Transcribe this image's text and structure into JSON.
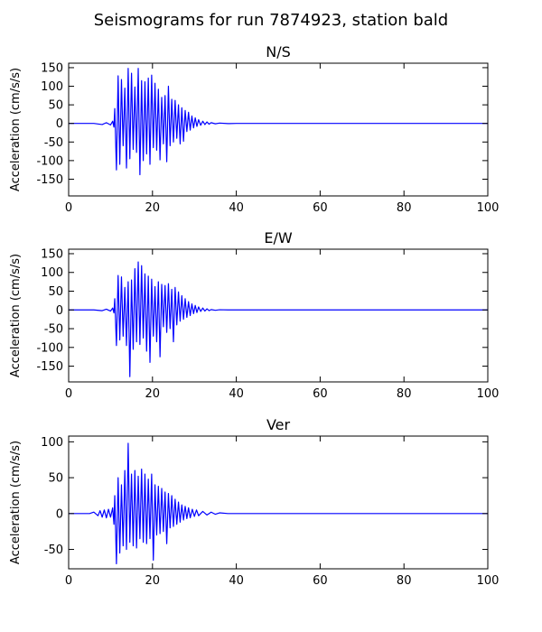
{
  "figure": {
    "title": "Seismograms for run 7874923, station bald",
    "background": "#ffffff",
    "line_color": "#0000ff"
  },
  "chart_data": [
    {
      "type": "line",
      "title": "N/S",
      "xlabel": "",
      "ylabel": "Acceleration (cm/s/s)",
      "xlim": [
        0,
        100
      ],
      "ylim": [
        -195,
        162
      ],
      "xticks": [
        0,
        20,
        40,
        60,
        80,
        100
      ],
      "yticks": [
        -150,
        -100,
        -50,
        0,
        50,
        100,
        150
      ],
      "grid": false,
      "series": [
        {
          "x": [
            0,
            6,
            8,
            9,
            10,
            10.5,
            10.8,
            11,
            11.4,
            11.8,
            12.2,
            12.6,
            13,
            13.4,
            13.8,
            14.2,
            14.6,
            15,
            15.4,
            15.8,
            16.2,
            16.6,
            17,
            17.4,
            17.8,
            18.2,
            18.6,
            19,
            19.4,
            19.8,
            20.2,
            20.6,
            21,
            21.4,
            21.8,
            22.2,
            22.6,
            23,
            23.4,
            23.8,
            24.2,
            24.6,
            25,
            25.4,
            25.8,
            26.2,
            26.6,
            27,
            27.4,
            27.8,
            28.2,
            28.6,
            29,
            29.4,
            29.8,
            30.2,
            30.6,
            31,
            31.5,
            32,
            32.5,
            33,
            33.5,
            34,
            35,
            36,
            38,
            40,
            100
          ],
          "y": [
            0,
            0,
            -3,
            2,
            -4,
            6,
            -10,
            40,
            -125,
            128,
            -110,
            118,
            -60,
            95,
            -120,
            148,
            -95,
            135,
            -70,
            98,
            -78,
            148,
            -138,
            115,
            -100,
            112,
            -82,
            122,
            -110,
            130,
            -65,
            108,
            -72,
            92,
            -98,
            70,
            -55,
            75,
            -103,
            100,
            -60,
            65,
            -50,
            62,
            -40,
            50,
            -55,
            42,
            -48,
            35,
            -22,
            30,
            -18,
            20,
            -12,
            15,
            -8,
            10,
            -5,
            6,
            -3,
            4,
            -2,
            2,
            -1,
            1,
            -0.5,
            0,
            0
          ]
        }
      ]
    },
    {
      "type": "line",
      "title": "E/W",
      "xlabel": "",
      "ylabel": "Acceleration (cm/s/s)",
      "xlim": [
        0,
        100
      ],
      "ylim": [
        -192,
        162
      ],
      "xticks": [
        0,
        20,
        40,
        60,
        80,
        100
      ],
      "yticks": [
        -150,
        -100,
        -50,
        0,
        50,
        100,
        150
      ],
      "grid": false,
      "series": [
        {
          "x": [
            0,
            6,
            8,
            9,
            10,
            10.5,
            10.8,
            11,
            11.4,
            11.8,
            12.2,
            12.6,
            13,
            13.4,
            13.8,
            14.2,
            14.6,
            15,
            15.4,
            15.8,
            16.2,
            16.6,
            17,
            17.4,
            17.8,
            18.2,
            18.6,
            19,
            19.4,
            19.8,
            20.2,
            20.6,
            21,
            21.4,
            21.8,
            22.2,
            22.6,
            23,
            23.4,
            23.8,
            24.2,
            24.6,
            25,
            25.4,
            25.8,
            26.2,
            26.6,
            27,
            27.4,
            27.8,
            28.2,
            28.6,
            29,
            29.4,
            29.8,
            30.2,
            30.6,
            31,
            31.5,
            32,
            32.5,
            33,
            33.5,
            34,
            35,
            36,
            38,
            40,
            100
          ],
          "y": [
            0,
            0,
            -2,
            2,
            -3,
            5,
            -8,
            30,
            -95,
            92,
            -80,
            88,
            -70,
            60,
            -95,
            75,
            -178,
            80,
            -105,
            110,
            -85,
            128,
            -92,
            118,
            -75,
            96,
            -110,
            90,
            -140,
            82,
            -70,
            62,
            -85,
            75,
            -125,
            68,
            -45,
            65,
            -60,
            70,
            -50,
            55,
            -85,
            60,
            -40,
            48,
            -30,
            38,
            -25,
            30,
            -20,
            22,
            -15,
            16,
            -10,
            12,
            -7,
            8,
            -4,
            5,
            -3,
            3,
            -2,
            1,
            -1,
            0.5,
            0,
            0,
            0
          ]
        }
      ]
    },
    {
      "type": "line",
      "title": "Ver",
      "xlabel": "",
      "ylabel": "Acceleration (cm/s/s)",
      "xlim": [
        0,
        100
      ],
      "ylim": [
        -77,
        108
      ],
      "xticks": [
        0,
        20,
        40,
        60,
        80,
        100
      ],
      "yticks": [
        -50,
        0,
        50,
        100
      ],
      "grid": false,
      "series": [
        {
          "x": [
            0,
            5,
            6,
            7,
            7.5,
            8,
            8.5,
            9,
            9.5,
            10,
            10.5,
            10.8,
            11,
            11.4,
            11.8,
            12.2,
            12.6,
            13,
            13.4,
            13.8,
            14.2,
            14.6,
            15,
            15.4,
            15.8,
            16.2,
            16.6,
            17,
            17.4,
            17.8,
            18.2,
            18.6,
            19,
            19.4,
            19.8,
            20.2,
            20.6,
            21,
            21.4,
            21.8,
            22.2,
            22.6,
            23,
            23.4,
            23.8,
            24.2,
            24.6,
            25,
            25.4,
            25.8,
            26.2,
            26.6,
            27,
            27.4,
            27.8,
            28.2,
            28.6,
            29,
            29.5,
            30,
            30.5,
            31,
            32,
            33,
            34,
            35,
            36,
            38,
            40,
            100
          ],
          "y": [
            0,
            0,
            2,
            -3,
            4,
            -5,
            5,
            -6,
            6,
            -5,
            8,
            -15,
            25,
            -70,
            50,
            -55,
            40,
            -45,
            60,
            -50,
            98,
            -40,
            55,
            -45,
            60,
            -48,
            52,
            -35,
            62,
            -40,
            55,
            -42,
            48,
            -35,
            55,
            -65,
            40,
            -30,
            38,
            -28,
            35,
            -25,
            30,
            -42,
            28,
            -20,
            25,
            -18,
            20,
            -15,
            16,
            -12,
            12,
            -9,
            10,
            -7,
            8,
            -6,
            6,
            -4,
            5,
            -3,
            3,
            -2,
            2,
            -1,
            1,
            0,
            0,
            0
          ]
        }
      ]
    }
  ]
}
